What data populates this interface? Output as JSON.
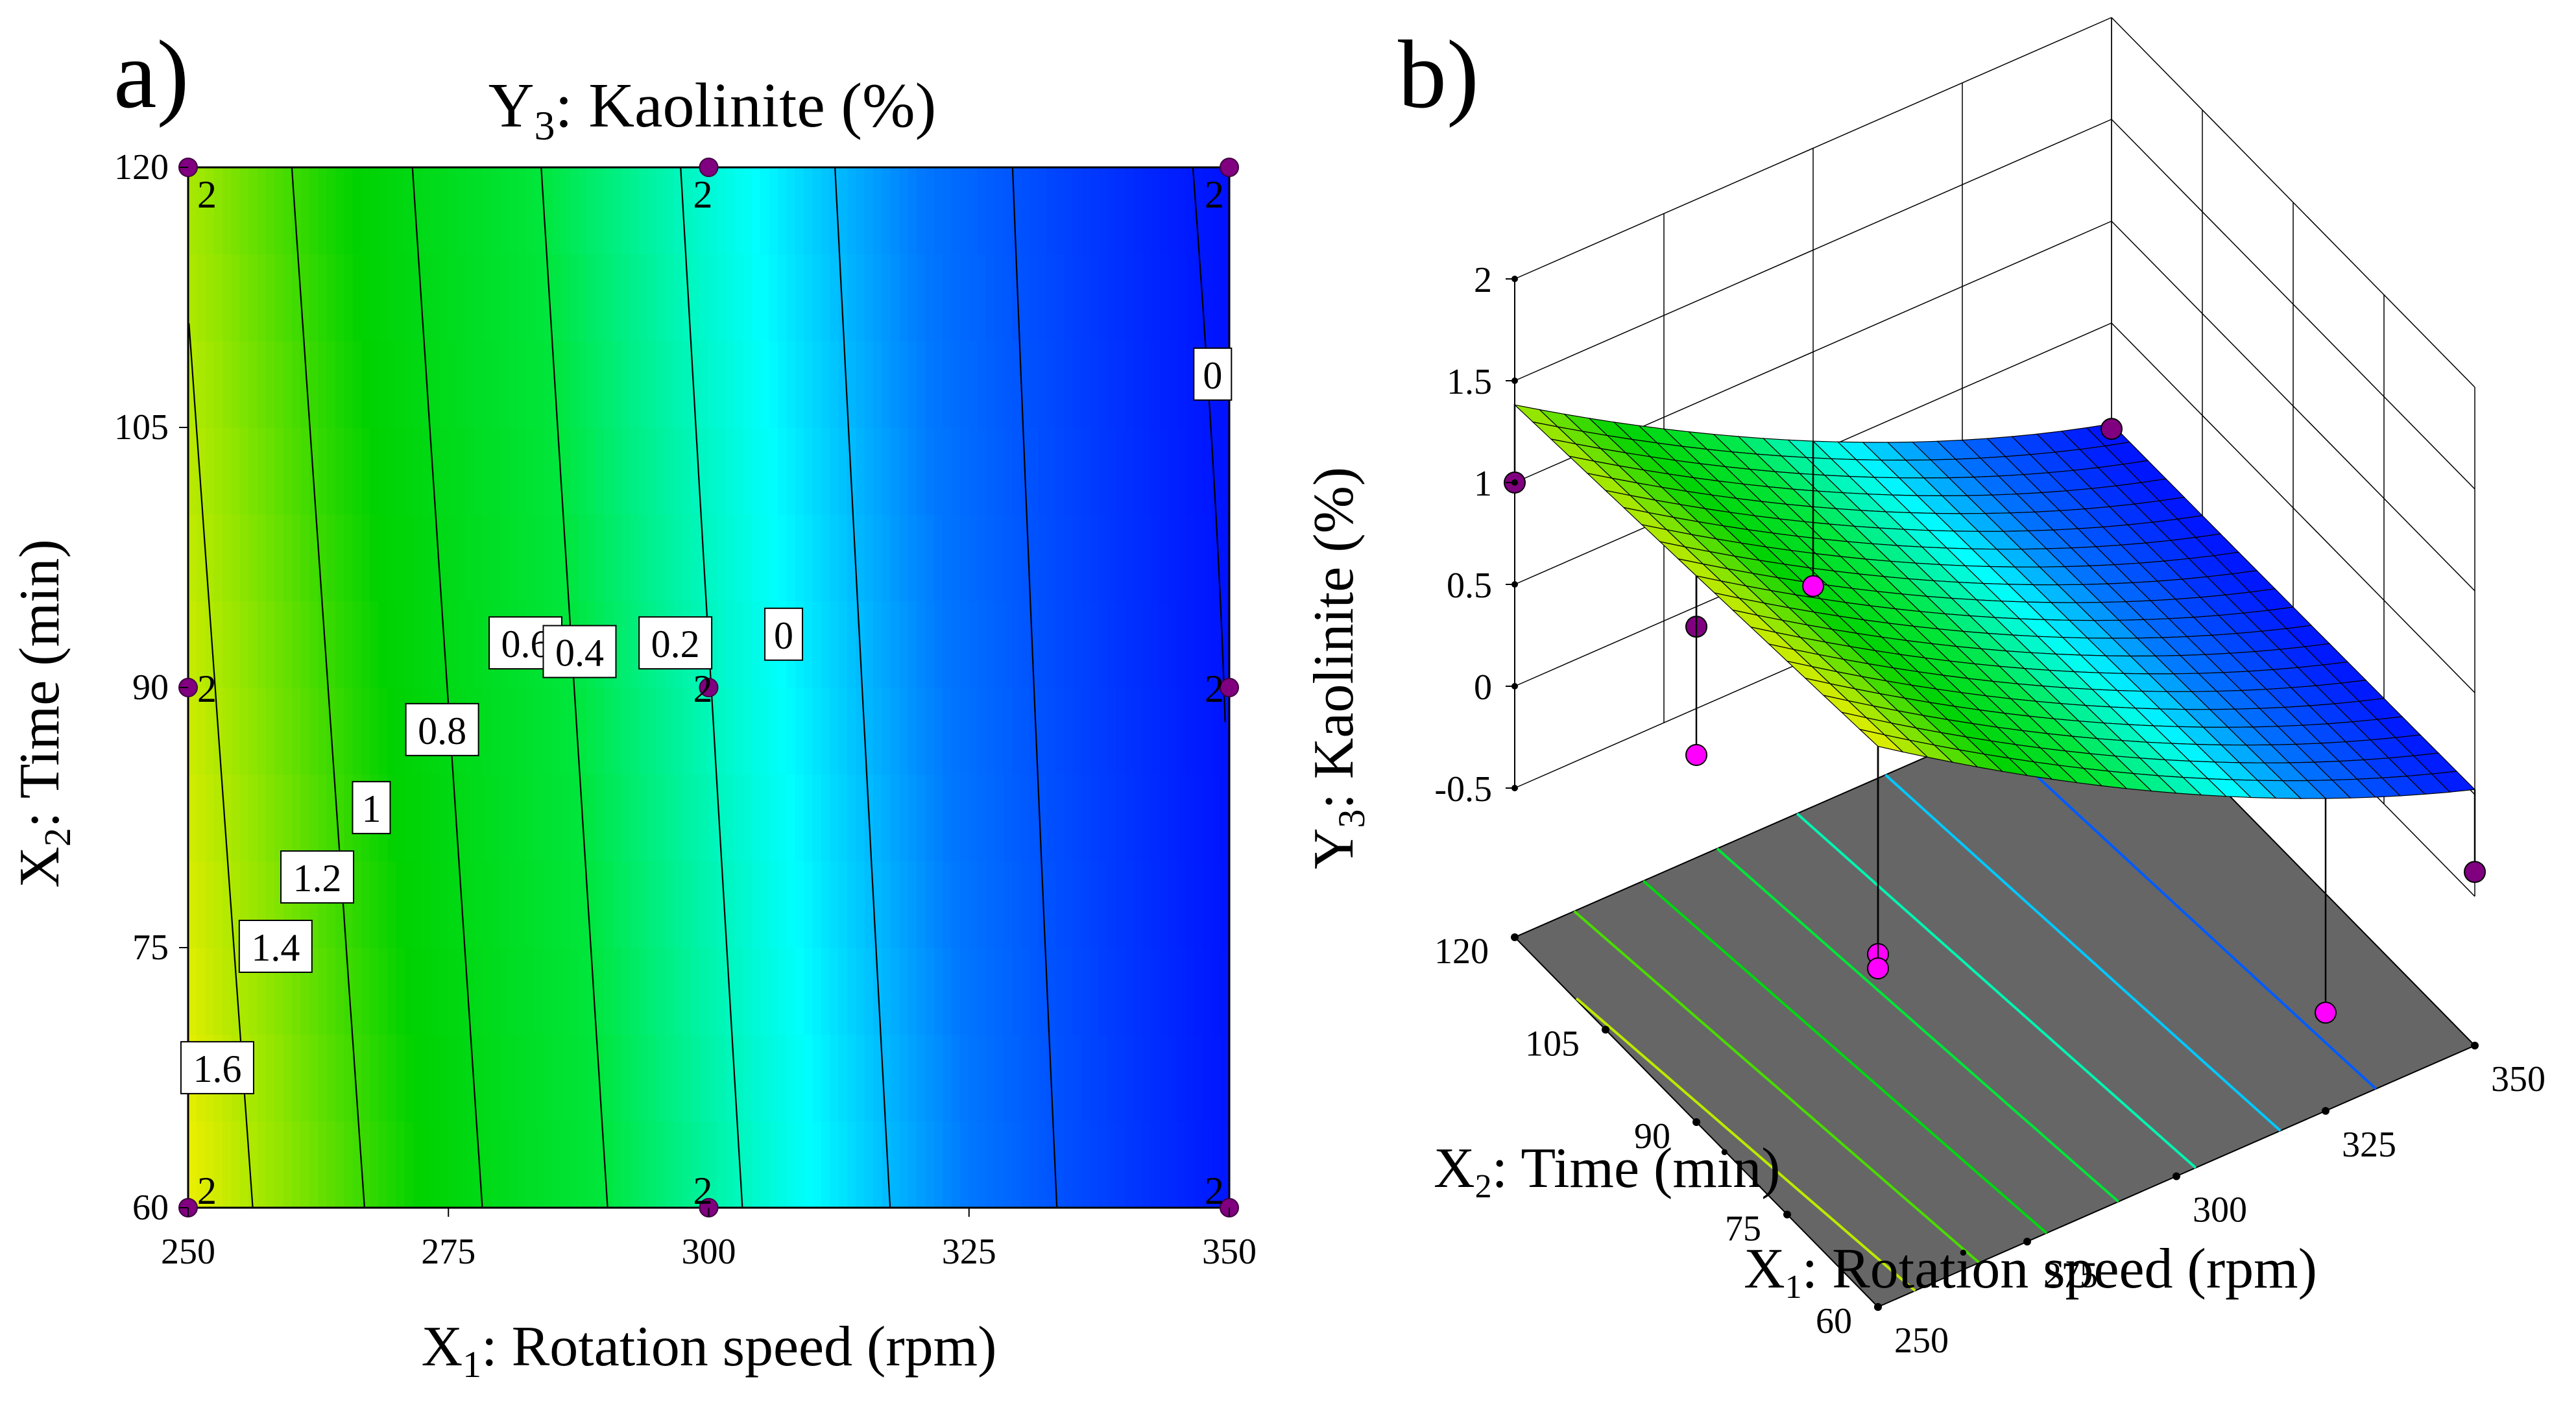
{
  "panels": {
    "a_label": "a)",
    "b_label": "b)"
  },
  "chart_data": [
    {
      "type": "contour",
      "panel": "a)",
      "title": "Y3: Kaolinite (%)",
      "title_main": "Y",
      "title_sub": "3",
      "title_rest": ": Kaolinite (%)",
      "xlabel_main": "X",
      "xlabel_sub": "1",
      "xlabel_rest": ": Rotation speed (rpm)",
      "ylabel_main": "X",
      "ylabel_sub": "2",
      "ylabel_rest": ": Time (min)",
      "xlim": [
        250,
        350
      ],
      "ylim": [
        60,
        120
      ],
      "xticks": [
        "250",
        "275",
        "300",
        "325",
        "350"
      ],
      "yticks": [
        "60",
        "75",
        "90",
        "105",
        "120"
      ],
      "contour_levels": [
        {
          "label": "1.6",
          "value": 1.6,
          "at": [
            252.8,
            68
          ]
        },
        {
          "label": "1.4",
          "value": 1.4,
          "at": [
            258.4,
            75
          ]
        },
        {
          "label": "1.2",
          "value": 1.2,
          "at": [
            262.4,
            79
          ]
        },
        {
          "label": "1",
          "value": 1.0,
          "at": [
            267.6,
            83
          ]
        },
        {
          "label": "0.8",
          "value": 0.8,
          "at": [
            274.4,
            87.5
          ]
        },
        {
          "label": "0.6",
          "value": 0.6,
          "at": [
            282.4,
            92.5
          ]
        },
        {
          "label": "0.4",
          "value": 0.4,
          "at": [
            287.6,
            92
          ]
        },
        {
          "label": "0.2",
          "value": 0.2,
          "at": [
            296.8,
            92.5
          ]
        },
        {
          "label": "0",
          "value": 0.0,
          "at": [
            307.2,
            93
          ]
        },
        {
          "label": "0",
          "value": 0.0,
          "at": [
            348.4,
            108
          ]
        }
      ],
      "design_points": [
        {
          "x": 250,
          "y": 60,
          "replicates": "2"
        },
        {
          "x": 250,
          "y": 90,
          "replicates": "2"
        },
        {
          "x": 250,
          "y": 120,
          "replicates": "2"
        },
        {
          "x": 300,
          "y": 60,
          "replicates": "2"
        },
        {
          "x": 300,
          "y": 90,
          "replicates": "2"
        },
        {
          "x": 300,
          "y": 120,
          "replicates": "2"
        },
        {
          "x": 350,
          "y": 60,
          "replicates": "2"
        },
        {
          "x": 350,
          "y": 90,
          "replicates": "2"
        },
        {
          "x": 350,
          "y": 120,
          "replicates": "2"
        }
      ],
      "color_scale": [
        "#ff0000",
        "#f7a200",
        "#ffff00",
        "#00d900",
        "#00ffff",
        "#0000ff"
      ]
    },
    {
      "type": "surface3d",
      "panel": "b)",
      "zlabel_main": "Y",
      "zlabel_sub": "3",
      "zlabel_rest": ": Kaolinite (%)",
      "xlabel_main": "X",
      "xlabel_sub": "1",
      "xlabel_rest": ": Rotation speed (rpm)",
      "ylabel_main": "X",
      "ylabel_sub": "2",
      "ylabel_rest": ": Time (min)",
      "xlim": [
        250,
        350
      ],
      "ylim": [
        60,
        120
      ],
      "zlim": [
        -0.5,
        2
      ],
      "xticks": [
        "250",
        "275",
        "300",
        "325",
        "350"
      ],
      "yticks": [
        "60",
        "75",
        "90",
        "105",
        "120"
      ],
      "zticks": [
        "-0.5",
        "0",
        "0.5",
        "1",
        "1.5",
        "2"
      ],
      "floor_color": "#666666",
      "surface_colors": {
        "low": "#0000ff",
        "mid": "#00ffff",
        "high": "#f7a200"
      },
      "point_colors": {
        "above": "#800080",
        "below": "#ff00ff"
      }
    }
  ]
}
